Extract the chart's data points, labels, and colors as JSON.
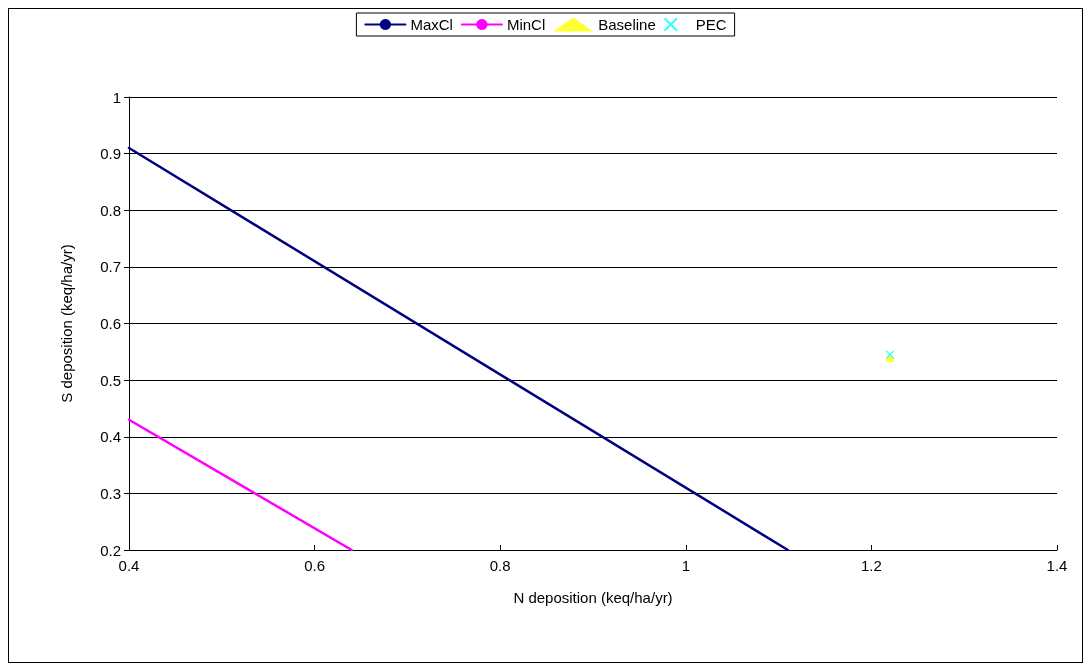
{
  "chart_data": {
    "type": "line",
    "xlabel": "N deposition (keq/ha/yr)",
    "ylabel": "S deposition (keq/ha/yr)",
    "xlim": [
      0.4,
      1.4
    ],
    "xticks": [
      0.4,
      0.6,
      0.8,
      1,
      1.2,
      1.4
    ],
    "ylim": [
      0.2,
      1
    ],
    "yticks": [
      0.2,
      0.3,
      0.4,
      0.5,
      0.6,
      0.7,
      0.8,
      0.9,
      1
    ],
    "grid": "y",
    "legend": "top",
    "series": [
      {
        "name": "MaxCl",
        "color": "#000080",
        "marker": "none",
        "x": [
          0.4,
          1.11
        ],
        "values": [
          0.91,
          0.2
        ]
      },
      {
        "name": "MinCl",
        "color": "#ff00ff",
        "marker": "none",
        "x": [
          0.4,
          0.64
        ],
        "values": [
          0.43,
          0.2
        ]
      },
      {
        "name": "Baseline",
        "color": "#ffff00",
        "type": "scatter",
        "marker": "triangle",
        "x": [
          1.22
        ],
        "values": [
          0.54
        ]
      },
      {
        "name": "PEC",
        "color": "#00ffff",
        "type": "scatter",
        "marker": "cross",
        "x": [
          1.22
        ],
        "values": [
          0.545
        ]
      }
    ]
  }
}
